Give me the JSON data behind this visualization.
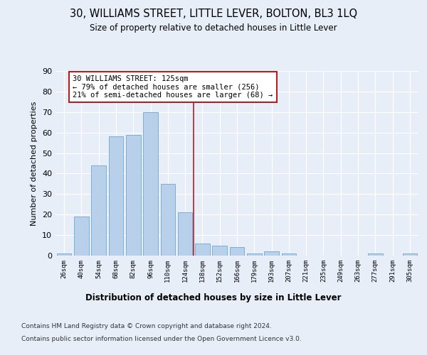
{
  "title": "30, WILLIAMS STREET, LITTLE LEVER, BOLTON, BL3 1LQ",
  "subtitle": "Size of property relative to detached houses in Little Lever",
  "xlabel": "Distribution of detached houses by size in Little Lever",
  "ylabel": "Number of detached properties",
  "categories": [
    "26sqm",
    "40sqm",
    "54sqm",
    "68sqm",
    "82sqm",
    "96sqm",
    "110sqm",
    "124sqm",
    "138sqm",
    "152sqm",
    "166sqm",
    "179sqm",
    "193sqm",
    "207sqm",
    "221sqm",
    "235sqm",
    "249sqm",
    "263sqm",
    "277sqm",
    "291sqm",
    "305sqm"
  ],
  "values": [
    1,
    19,
    44,
    58,
    59,
    70,
    35,
    21,
    6,
    5,
    4,
    1,
    2,
    1,
    0,
    0,
    0,
    0,
    1,
    0,
    1
  ],
  "bar_color": "#b8d0ea",
  "bar_edge_color": "#7aafd4",
  "marker_line_color": "#aa2222",
  "annotation_text": "30 WILLIAMS STREET: 125sqm\n← 79% of detached houses are smaller (256)\n21% of semi-detached houses are larger (68) →",
  "annotation_box_color": "#ffffff",
  "annotation_box_edge_color": "#aa2222",
  "ylim": [
    0,
    90
  ],
  "yticks": [
    0,
    10,
    20,
    30,
    40,
    50,
    60,
    70,
    80,
    90
  ],
  "background_color": "#e8eef8",
  "grid_color": "#ffffff",
  "footer_line1": "Contains HM Land Registry data © Crown copyright and database right 2024.",
  "footer_line2": "Contains public sector information licensed under the Open Government Licence v3.0."
}
